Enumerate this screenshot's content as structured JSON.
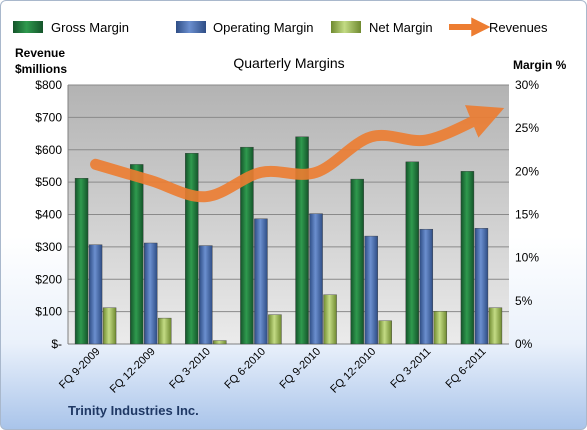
{
  "chart_data": {
    "type": "bar",
    "title": "Quarterly Margins",
    "company": "Trinity Industries Inc.",
    "categories": [
      "FQ 9-2009",
      "FQ 12-2009",
      "FQ 3-2010",
      "FQ 6-2010",
      "FQ 9-2010",
      "FQ 12-2010",
      "FQ 3-2011",
      "FQ 6-2011"
    ],
    "left_axis": {
      "title_line1": "Revenue",
      "title_line2": "$millions",
      "ylim": [
        0,
        800
      ],
      "ticks": [
        0,
        100,
        200,
        300,
        400,
        500,
        600,
        700,
        800
      ],
      "tick_labels": [
        "$-",
        "$100",
        "$200",
        "$300",
        "$400",
        "$500",
        "$600",
        "$700",
        "$800"
      ]
    },
    "right_axis": {
      "title": "Margin %",
      "ylim": [
        0,
        30
      ],
      "ticks": [
        0,
        5,
        10,
        15,
        20,
        25,
        30
      ],
      "tick_labels": [
        "0%",
        "5%",
        "10%",
        "15%",
        "20%",
        "25%",
        "30%"
      ]
    },
    "series": [
      {
        "name": "Gross Margin",
        "axis": "right",
        "color": "#1e7b3a",
        "values": [
          19.2,
          20.8,
          22.1,
          22.8,
          24.0,
          19.1,
          21.1,
          20.0
        ]
      },
      {
        "name": "Operating Margin",
        "axis": "right",
        "color": "#4a6fb0",
        "values": [
          11.5,
          11.7,
          11.4,
          14.5,
          15.1,
          12.5,
          13.3,
          13.4
        ]
      },
      {
        "name": "Net Margin",
        "axis": "right",
        "color": "#9bbb59",
        "values": [
          4.2,
          3.0,
          0.4,
          3.4,
          5.7,
          2.7,
          3.8,
          4.2
        ]
      },
      {
        "name": "Revenues",
        "axis": "left",
        "type": "line",
        "color": "#ed7d31",
        "values": [
          555,
          505,
          455,
          530,
          530,
          640,
          630,
          700
        ]
      }
    ],
    "grid": true,
    "legend_position": "top"
  }
}
